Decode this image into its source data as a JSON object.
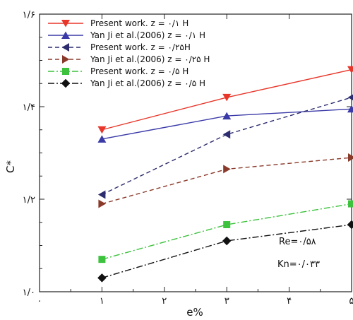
{
  "chart_data": {
    "type": "line",
    "xlabel": "e%",
    "ylabel": "C*",
    "xlim": [
      0,
      5
    ],
    "ylim": [
      1.0,
      1.6
    ],
    "x_ticks": [
      {
        "value": 0,
        "label": "۰"
      },
      {
        "value": 1,
        "label": "۱"
      },
      {
        "value": 2,
        "label": "۲"
      },
      {
        "value": 3,
        "label": "۳"
      },
      {
        "value": 4,
        "label": "۴"
      },
      {
        "value": 5,
        "label": "۵"
      }
    ],
    "y_ticks": [
      {
        "value": 1.0,
        "label": "۱/۰"
      },
      {
        "value": 1.2,
        "label": "۱/۲"
      },
      {
        "value": 1.4,
        "label": "۱/۴"
      },
      {
        "value": 1.6,
        "label": "۱/۶"
      }
    ],
    "x": [
      1,
      3,
      5
    ],
    "series": [
      {
        "name": "Present work. z = ۰/۱ H",
        "values": [
          1.35,
          1.42,
          1.48
        ],
        "color": "#e8362a",
        "dash": "solid",
        "marker": "triangle-down"
      },
      {
        "name": "Yan Ji et al.(2006) z = ۰/۱ H",
        "values": [
          1.33,
          1.38,
          1.395
        ],
        "color": "#3a3aa8",
        "dash": "solid",
        "marker": "triangle-up"
      },
      {
        "name": "Present work. z = ۰/۲۵H",
        "values": [
          1.21,
          1.34,
          1.42
        ],
        "color": "#2c2c6e",
        "dash": "dashed",
        "marker": "triangle-left"
      },
      {
        "name": "Yan Ji et al.(2006) z = ۰/۲۵ H",
        "values": [
          1.19,
          1.265,
          1.29
        ],
        "color": "#8a3a2a",
        "dash": "dashed",
        "marker": "triangle-right"
      },
      {
        "name": "Present work. z = ۰/۵ H",
        "values": [
          1.07,
          1.145,
          1.19
        ],
        "color": "#3cc23c",
        "dash": "dashdot",
        "marker": "square"
      },
      {
        "name": "Yan Ji et al.(2006) z = ۰/۵ H",
        "values": [
          1.03,
          1.11,
          1.145
        ],
        "color": "#111111",
        "dash": "dashdot",
        "marker": "diamond"
      }
    ],
    "annotations": [
      "Re=۰/۵۸",
      "Kn=۰/۰۳۳"
    ],
    "legend_position": "top-left",
    "grid": false
  }
}
